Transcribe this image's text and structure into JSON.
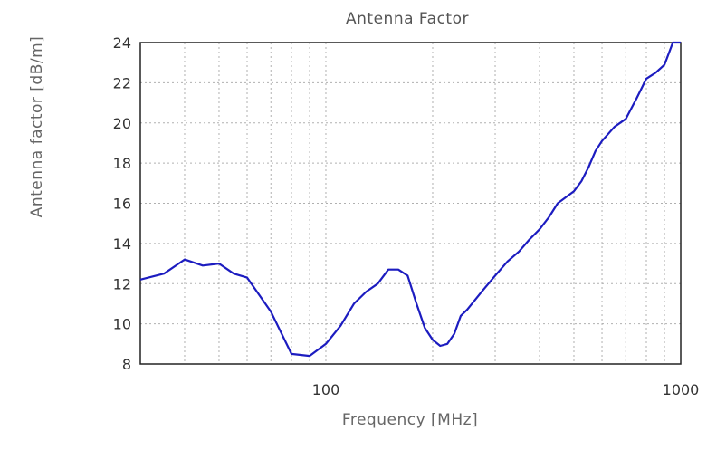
{
  "chart_data": {
    "type": "line",
    "title": "Antenna Factor",
    "xlabel": "Frequency [MHz]",
    "ylabel": "Antenna factor [dB/m]",
    "xscale": "log",
    "xlim": [
      30,
      1000
    ],
    "ylim": [
      8,
      24
    ],
    "grid": true,
    "x_tick_labels": [
      "100",
      "1000"
    ],
    "y_tick_labels": [
      "8",
      "10",
      "12",
      "14",
      "16",
      "18",
      "20",
      "22",
      "24"
    ],
    "series": [
      {
        "color": "#1c1cc0",
        "x": [
          30,
          35,
          40,
          45,
          50,
          55,
          60,
          70,
          80,
          90,
          100,
          110,
          120,
          130,
          140,
          150,
          160,
          170,
          180,
          190,
          200,
          210,
          220,
          230,
          240,
          250,
          275,
          300,
          325,
          350,
          375,
          400,
          425,
          450,
          500,
          525,
          550,
          575,
          600,
          650,
          700,
          750,
          800,
          850,
          900,
          950,
          1000
        ],
        "y": [
          12.2,
          12.5,
          13.2,
          12.9,
          13.0,
          12.5,
          12.3,
          10.6,
          8.5,
          8.4,
          9.0,
          9.9,
          11.0,
          11.6,
          12.0,
          12.7,
          12.7,
          12.4,
          11.0,
          9.8,
          9.2,
          8.9,
          9.0,
          9.5,
          10.4,
          10.7,
          11.6,
          12.4,
          13.1,
          13.6,
          14.2,
          14.7,
          15.3,
          16.0,
          16.6,
          17.1,
          17.8,
          18.6,
          19.1,
          19.8,
          20.2,
          21.2,
          22.2,
          22.5,
          22.9,
          24.0,
          24.0
        ]
      }
    ]
  }
}
